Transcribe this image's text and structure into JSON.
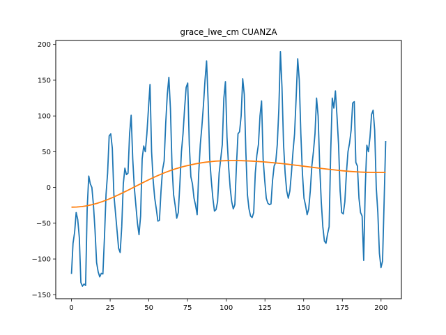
{
  "chart_data": {
    "type": "line",
    "title": "grace_lwe_cm CUANZA",
    "xlabel": "",
    "ylabel": "",
    "xlim": [
      -10.15,
      213.15
    ],
    "ylim": [
      -155.55,
      205.55
    ],
    "xticks": [
      0,
      25,
      50,
      75,
      100,
      125,
      150,
      175,
      200
    ],
    "yticks": [
      -150,
      -100,
      -50,
      0,
      50,
      100,
      150,
      200
    ],
    "grid": false,
    "series": [
      {
        "color": "#1f77b4",
        "values": [
          -121,
          -78,
          -63,
          -35,
          -45,
          -70,
          -133,
          -138,
          -135,
          -137,
          -30,
          16,
          5,
          0,
          -25,
          -60,
          -105,
          -118,
          -125,
          -120,
          -121,
          -70,
          -10,
          20,
          72,
          75,
          55,
          -10,
          -35,
          -60,
          -85,
          -91,
          -55,
          5,
          27,
          18,
          20,
          75,
          101,
          40,
          0,
          -25,
          -50,
          -66,
          -40,
          40,
          58,
          50,
          75,
          110,
          144,
          50,
          10,
          -15,
          -30,
          -47,
          -46,
          -5,
          25,
          37,
          90,
          130,
          154,
          110,
          30,
          -10,
          -25,
          -43,
          -35,
          5,
          50,
          75,
          110,
          140,
          146,
          60,
          15,
          5,
          -15,
          -25,
          -38,
          20,
          60,
          85,
          115,
          150,
          177,
          120,
          40,
          10,
          -15,
          -33,
          -31,
          -20,
          20,
          40,
          60,
          125,
          148,
          70,
          30,
          0,
          -20,
          -30,
          -24,
          30,
          75,
          78,
          100,
          152,
          130,
          50,
          -10,
          -30,
          -40,
          -42,
          -35,
          20,
          45,
          60,
          100,
          121,
          40,
          10,
          -15,
          -22,
          -24,
          -23,
          10,
          30,
          35,
          60,
          110,
          190,
          140,
          60,
          20,
          -5,
          -15,
          -5,
          20,
          50,
          75,
          125,
          180,
          150,
          75,
          20,
          -15,
          -25,
          -38,
          -30,
          -5,
          30,
          50,
          75,
          125,
          100,
          30,
          -20,
          -55,
          -75,
          -78,
          -65,
          -55,
          50,
          125,
          111,
          135,
          100,
          60,
          -5,
          -35,
          -37,
          -20,
          20,
          50,
          62,
          80,
          118,
          120,
          35,
          30,
          -15,
          -35,
          -40,
          -102,
          0,
          59,
          50,
          70,
          102,
          108,
          80,
          0,
          -35,
          -92,
          -112,
          -103,
          -20,
          65
        ]
      },
      {
        "color": "#ff7f0e",
        "values": [
          -27.5,
          -27.3,
          -26.7,
          -25.6,
          -24.0,
          -22.1,
          -19.7,
          -17.0,
          -14.0,
          -10.7,
          -7.3,
          -3.7,
          -0.1,
          3.6,
          7.2,
          10.8,
          14.2,
          17.4,
          20.4,
          23.1,
          25.6,
          27.8,
          29.7,
          31.4,
          32.9,
          34.2,
          35.3,
          36.1,
          36.8,
          37.2,
          37.5,
          37.6,
          37.6,
          37.5,
          37.2,
          36.9,
          36.5,
          36.0,
          35.4,
          34.7,
          34.0,
          33.3,
          32.5,
          31.6,
          30.7,
          29.8,
          28.9,
          28.0,
          27.1,
          26.2,
          25.4,
          24.6,
          23.8,
          23.1,
          22.5,
          22.0,
          21.6,
          21.3,
          21.1,
          21.0,
          21.0,
          21.0
        ]
      }
    ]
  }
}
